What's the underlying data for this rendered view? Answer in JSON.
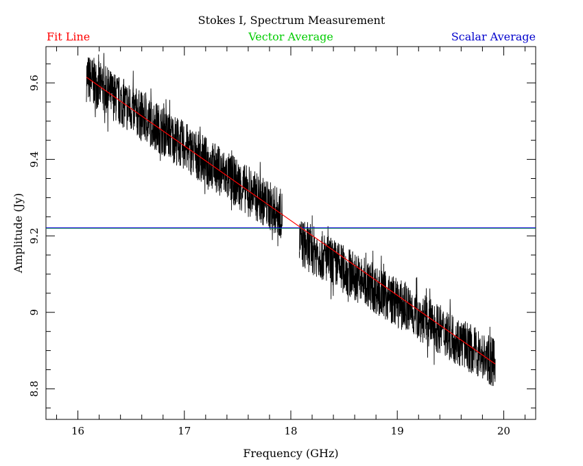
{
  "chart_data": {
    "type": "line",
    "title": "Stokes I, Spectrum Measurement",
    "xlabel": "Frequency (GHz)",
    "ylabel": "Amplitude (Jy)",
    "xlim": [
      15.7,
      20.3
    ],
    "ylim": [
      8.72,
      9.695
    ],
    "x_ticks": [
      16,
      17,
      18,
      19,
      20
    ],
    "x_tick_labels": [
      "16",
      "17",
      "18",
      "19",
      "20"
    ],
    "y_ticks": [
      8.8,
      9.0,
      9.2,
      9.4,
      9.6
    ],
    "y_tick_labels": [
      "8.8",
      "9",
      "9.2",
      "9.4",
      "9.6"
    ],
    "grid": false,
    "legend": [
      {
        "name": "Fit Line",
        "color": "#ff0000",
        "position": "top-left"
      },
      {
        "name": "Vector Average",
        "color": "#00cc00",
        "position": "top-center"
      },
      {
        "name": "Scalar Average",
        "color": "#0000cc",
        "position": "top-right"
      }
    ],
    "series": [
      {
        "name": "Fit Line",
        "color": "#ff0000",
        "kind": "line",
        "x": [
          16.08,
          19.92
        ],
        "y": [
          9.615,
          8.865
        ]
      },
      {
        "name": "Vector Average",
        "color": "#00cc00",
        "kind": "hline",
        "y": 9.22
      },
      {
        "name": "Scalar Average",
        "color": "#0000cc",
        "kind": "hline",
        "y": 9.221
      },
      {
        "name": "Spectrum",
        "color": "#000000",
        "kind": "noisy-band",
        "segments": [
          {
            "x_start": 16.08,
            "x_end": 17.92,
            "y_start": 9.615,
            "y_end": 9.255,
            "noise_halfwidth": 0.065
          },
          {
            "x_start": 18.08,
            "x_end": 19.92,
            "y_start": 9.185,
            "y_end": 8.865,
            "noise_halfwidth": 0.065
          }
        ]
      }
    ]
  }
}
